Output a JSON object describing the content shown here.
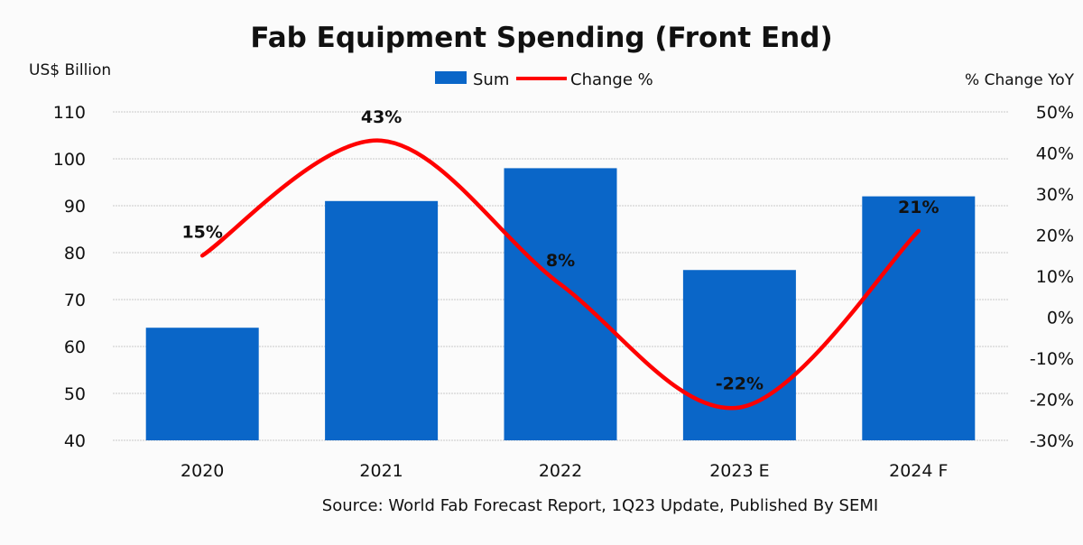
{
  "chart_data": {
    "type": "bar",
    "title": "Fab Equipment Spending (Front End)",
    "ylabel": "US$ Billion",
    "y2label": "% Change YoY",
    "source": "Source: World Fab Forecast Report, 1Q23 Update, Published By SEMI",
    "categories": [
      "2020",
      "2021",
      "2022",
      "2023 E",
      "2024 F"
    ],
    "ylim": [
      40,
      110
    ],
    "yticks": [
      40,
      50,
      60,
      70,
      80,
      90,
      100,
      110
    ],
    "y2lim": [
      -30,
      50
    ],
    "y2ticks": [
      "-30%",
      "-20%",
      "-10%",
      "0%",
      "10%",
      "20%",
      "30%",
      "40%",
      "50%"
    ],
    "y2tick_values": [
      -30,
      -20,
      -10,
      0,
      10,
      20,
      30,
      40,
      50
    ],
    "grid": true,
    "legend_placement": "top-center",
    "series": [
      {
        "name": "Sum",
        "type": "bar",
        "axis": "left",
        "color": "#0a66c8",
        "values": [
          64,
          91,
          98,
          76.3,
          92
        ]
      },
      {
        "name": "Change %",
        "type": "line",
        "axis": "right",
        "color": "#ff0000",
        "smooth": true,
        "values": [
          15,
          43,
          8,
          -22,
          21
        ],
        "labels": [
          "15%",
          "43%",
          "8%",
          "-22%",
          "21%"
        ]
      }
    ]
  }
}
